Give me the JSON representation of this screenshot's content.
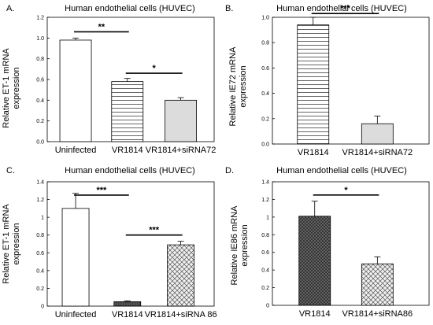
{
  "chart_data": [
    {
      "type": "bar",
      "panel_label": "A.",
      "title": "Human endothelial cells (HUVEC)",
      "ylabel_lines": [
        "Relative ET-1 mRNA",
        "expression"
      ],
      "xlabel": "",
      "ylim": [
        0,
        1.2
      ],
      "yticks": [
        "0.0",
        "0.2",
        "0.4",
        "0.6",
        "0.8",
        "1.0",
        "1.2"
      ],
      "categories": [
        "Uninfected",
        "VR1814",
        "VR1814+siRNA72"
      ],
      "values": [
        0.98,
        0.58,
        0.4
      ],
      "errors": [
        0.02,
        0.03,
        0.025
      ],
      "fills": [
        "white",
        "hlines",
        "lightgray"
      ],
      "significance": [
        {
          "from": 0,
          "to": 1,
          "level": 1.06,
          "label": "**"
        },
        {
          "from": 1,
          "to": 2,
          "level": 0.66,
          "label": "*"
        }
      ]
    },
    {
      "type": "bar",
      "panel_label": "B.",
      "title": "Human endothelial cells (HUVEC)",
      "ylabel_lines": [
        "Relative IE72 mRNA",
        "expression"
      ],
      "xlabel": "",
      "ylim": [
        0,
        1.0
      ],
      "yticks": [
        "0.0",
        "0.2",
        "0.4",
        "0.6",
        "0.8",
        "1.0"
      ],
      "categories": [
        "VR1814",
        "VR1814+siRNA72"
      ],
      "values": [
        0.94,
        0.16
      ],
      "errors": [
        0.06,
        0.06
      ],
      "fills": [
        "hlines",
        "lightgray"
      ],
      "significance": [
        {
          "from": 0,
          "to": 1,
          "level": 1.03,
          "label": "***"
        }
      ]
    },
    {
      "type": "bar",
      "panel_label": "C.",
      "title": "Human endothelial cells (HUVEC)",
      "ylabel_lines": [
        "Relative ET-1 mRNA",
        "expression"
      ],
      "xlabel": "",
      "ylim": [
        0,
        1.4
      ],
      "yticks": [
        "0",
        "0.2",
        "0.4",
        "0.6",
        "0.8",
        "1",
        "1.2",
        "1.4"
      ],
      "categories": [
        "Uninfected",
        "VR1814",
        "VR1814+siRNA 86"
      ],
      "values": [
        1.1,
        0.05,
        0.69
      ],
      "errors": [
        0.17,
        0.01,
        0.04
      ],
      "fills": [
        "white",
        "darkgray",
        "crosshatch"
      ],
      "significance": [
        {
          "from": 0,
          "to": 1,
          "level": 1.25,
          "label": "***"
        },
        {
          "from": 1,
          "to": 2,
          "level": 0.8,
          "label": "***"
        }
      ]
    },
    {
      "type": "bar",
      "panel_label": "D.",
      "title": "Human endothelial cells (HUVEC)",
      "ylabel_lines": [
        "Relative IE86 mRNA",
        "expression"
      ],
      "xlabel": "",
      "ylim": [
        0,
        1.4
      ],
      "yticks": [
        "0",
        "0.2",
        "0.4",
        "0.6",
        "0.8",
        "1",
        "1.2",
        "1.4"
      ],
      "categories": [
        "VR1814",
        "VR1814+siRNA86"
      ],
      "values": [
        1.01,
        0.47
      ],
      "errors": [
        0.17,
        0.08
      ],
      "fills": [
        "darkmesh",
        "crosshatch"
      ],
      "significance": [
        {
          "from": 0,
          "to": 1,
          "level": 1.25,
          "label": "*"
        }
      ]
    }
  ]
}
